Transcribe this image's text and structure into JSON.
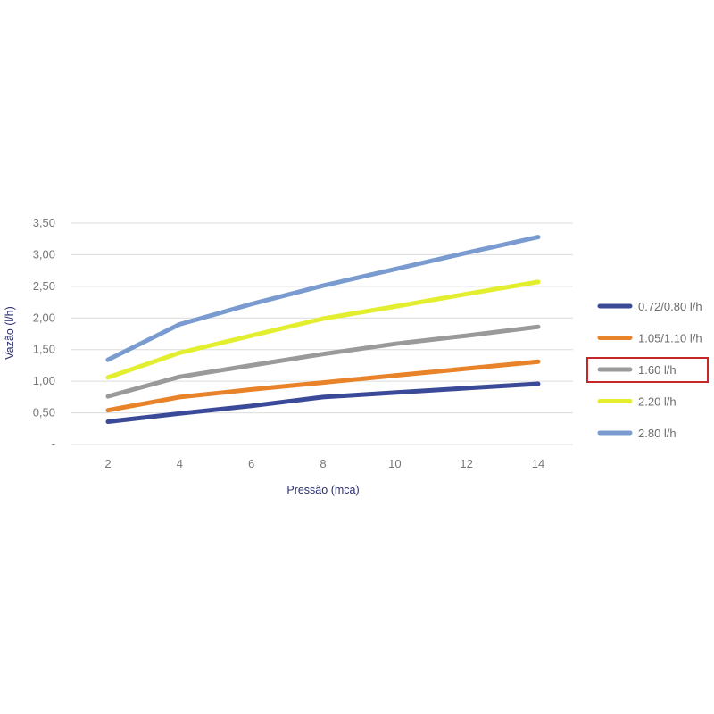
{
  "chart_data": {
    "type": "line",
    "xlabel": "Pressão (mca)",
    "ylabel": "Vazão (l/h)",
    "x": [
      2,
      4,
      6,
      8,
      10,
      12,
      14
    ],
    "x_ticks": [
      "2",
      "4",
      "6",
      "8",
      "10",
      "12",
      "14"
    ],
    "y_ticks": [
      {
        "value": 0,
        "label": "-"
      },
      {
        "value": 0.5,
        "label": "0,50"
      },
      {
        "value": 1.0,
        "label": "1,00"
      },
      {
        "value": 1.5,
        "label": "1,50"
      },
      {
        "value": 2.0,
        "label": "2,00"
      },
      {
        "value": 2.5,
        "label": "2,50"
      },
      {
        "value": 3.0,
        "label": "3,00"
      },
      {
        "value": 3.5,
        "label": "3,50"
      }
    ],
    "ylim": [
      0,
      3.5
    ],
    "grid": true,
    "legend_position": "right",
    "highlighted_legend_entry": "1.60 l/h",
    "highlight_color": "#c62828",
    "series": [
      {
        "name": "0.72/0.80 l/h",
        "color": "#3b4a98",
        "values": [
          0.36,
          0.49,
          0.61,
          0.75,
          0.82,
          0.89,
          0.96
        ]
      },
      {
        "name": "1.05/1.10 l/h",
        "color": "#e8832a",
        "values": [
          0.54,
          0.75,
          0.87,
          0.98,
          1.09,
          1.2,
          1.31
        ]
      },
      {
        "name": "1.60 l/h",
        "color": "#9a9a9a",
        "values": [
          0.76,
          1.07,
          1.25,
          1.43,
          1.59,
          1.72,
          1.86
        ]
      },
      {
        "name": "2.20 l/h",
        "color": "#e2ee2e",
        "values": [
          1.06,
          1.45,
          1.72,
          1.99,
          2.18,
          2.38,
          2.57
        ]
      },
      {
        "name": "2.80 l/h",
        "color": "#7a9bd0",
        "values": [
          1.34,
          1.9,
          2.22,
          2.51,
          2.77,
          3.03,
          3.28
        ]
      }
    ]
  }
}
